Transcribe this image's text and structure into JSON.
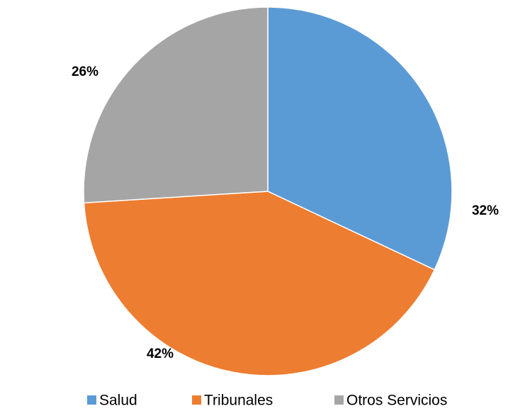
{
  "chart_data": {
    "type": "pie",
    "categories": [
      "Salud",
      "Tribunales",
      "Otros Servicios"
    ],
    "values": [
      32,
      42,
      26
    ],
    "value_labels": [
      "32%",
      "42%",
      "26%"
    ],
    "colors": [
      "#5b9bd5",
      "#ed7d31",
      "#a5a5a5"
    ],
    "legend": "bottom"
  }
}
